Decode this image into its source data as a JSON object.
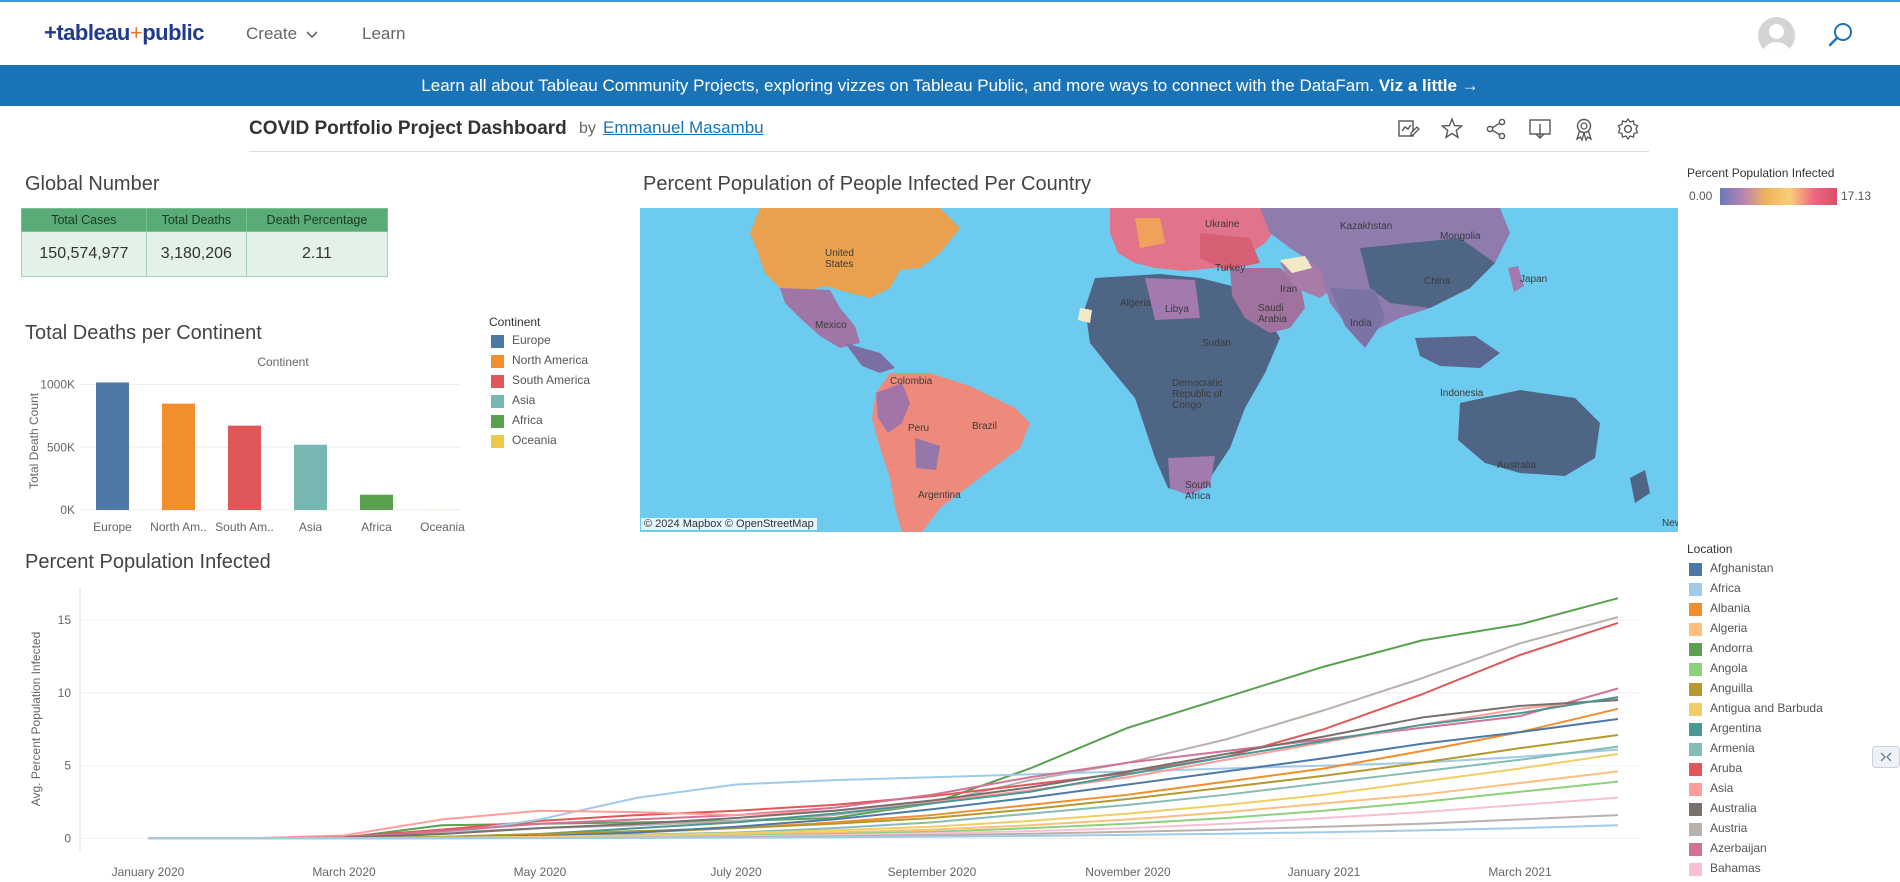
{
  "navbar": {
    "logo_main": "+tableau",
    "logo_plus": "+",
    "logo_public": "public",
    "create_label": "Create",
    "learn_label": "Learn"
  },
  "banner": {
    "text": "Learn all about Tableau Community Projects, exploring vizzes on Tableau Public, and more ways to connect with the DataFam.",
    "link": "Viz a little →"
  },
  "viz": {
    "title": "COVID Portfolio Project Dashboard",
    "by": "by",
    "author": "Emmanuel Masambu"
  },
  "global_number": {
    "title": "Global Number",
    "headers": [
      "Total Cases",
      "Total Deaths",
      "Death Percentage"
    ],
    "values": [
      "150,574,977",
      "3,180,206",
      "2.11"
    ]
  },
  "deaths_chart_section": {
    "title": "Total Deaths per Continent",
    "legend_title": "Continent"
  },
  "map_section": {
    "title": "Percent Population of People Infected Per Country",
    "legend_title": "Percent Population Infected",
    "legend_min": "0.00",
    "legend_max": "17.13",
    "credit": "© 2024 Mapbox © OpenStreetMap",
    "labels": [
      "United States",
      "Mexico",
      "Colombia",
      "Peru",
      "Brazil",
      "Argentina",
      "Algeria",
      "Libya",
      "Sudan",
      "Democratic Republic of Congo",
      "South Africa",
      "Saudi Arabia",
      "Iran",
      "India",
      "China",
      "Mongolia",
      "Kazakhstan",
      "Ukraine",
      "Turkey",
      "Japan",
      "Indonesia",
      "Australia",
      "New"
    ]
  },
  "line_section": {
    "title": "Percent Population Infected",
    "legend_title": "Location",
    "locations": [
      {
        "name": "Afghanistan",
        "color": "#4e79a7"
      },
      {
        "name": "Africa",
        "color": "#a0cbe8"
      },
      {
        "name": "Albania",
        "color": "#f28e2b"
      },
      {
        "name": "Algeria",
        "color": "#ffbe7d"
      },
      {
        "name": "Andorra",
        "color": "#59a14f"
      },
      {
        "name": "Angola",
        "color": "#8cd17d"
      },
      {
        "name": "Anguilla",
        "color": "#b6992d"
      },
      {
        "name": "Antigua and Barbuda",
        "color": "#f1ce63"
      },
      {
        "name": "Argentina",
        "color": "#499894"
      },
      {
        "name": "Armenia",
        "color": "#86bcb6"
      },
      {
        "name": "Aruba",
        "color": "#e15759"
      },
      {
        "name": "Asia",
        "color": "#ff9d9a"
      },
      {
        "name": "Australia",
        "color": "#79706e"
      },
      {
        "name": "Austria",
        "color": "#bab0ac"
      },
      {
        "name": "Azerbaijan",
        "color": "#d37295"
      },
      {
        "name": "Bahamas",
        "color": "#fabfd2"
      }
    ]
  },
  "chart_data": [
    {
      "type": "bar",
      "title": "Continent",
      "xlabel": "",
      "ylabel": "Total Death Count",
      "categories": [
        "Europe",
        "North Am..",
        "South Am..",
        "Asia",
        "Africa",
        "Oceania"
      ],
      "legend_labels": [
        "Europe",
        "North America",
        "South America",
        "Asia",
        "Africa",
        "Oceania"
      ],
      "values": [
        1016750,
        847942,
        672415,
        520269,
        121784,
        1046
      ],
      "colors": [
        "#4e79a7",
        "#f28e2b",
        "#e15759",
        "#76b7b2",
        "#59a14f",
        "#edc948"
      ],
      "ylim": [
        0,
        1100000
      ],
      "yticks": [
        0,
        500000,
        1000000
      ],
      "ytick_labels": [
        "0K",
        "500K",
        "1000K"
      ],
      "grid": true,
      "legend": "right"
    },
    {
      "type": "line",
      "title": "",
      "xlabel": "",
      "ylabel": "Avg. Percent Population Infected",
      "x": [
        "2020-01",
        "2020-02",
        "2020-03",
        "2020-04",
        "2020-05",
        "2020-06",
        "2020-07",
        "2020-08",
        "2020-09",
        "2020-10",
        "2020-11",
        "2020-12",
        "2021-01",
        "2021-02",
        "2021-03",
        "2021-04"
      ],
      "xtick_labels": [
        "January 2020",
        "March 2020",
        "May 2020",
        "July 2020",
        "September 2020",
        "November 2020",
        "January 2021",
        "March 2021"
      ],
      "xtick_positions": [
        "2020-01",
        "2020-03",
        "2020-05",
        "2020-07",
        "2020-09",
        "2020-11",
        "2021-01",
        "2021-03"
      ],
      "yticks": [
        0,
        5,
        10,
        15
      ],
      "ylim": [
        -0.8,
        17.2
      ],
      "grid": true,
      "legend": "right",
      "series": [
        {
          "name": "Andorra",
          "color": "#59a14f",
          "values": [
            0,
            0,
            0.05,
            0.9,
            1.0,
            1.1,
            1.2,
            1.4,
            2.4,
            4.8,
            7.6,
            9.7,
            11.8,
            13.6,
            14.7,
            16.5
          ]
        },
        {
          "name": "Australia",
          "color": "#bab0ac",
          "values": [
            0,
            0,
            0.05,
            0.4,
            0.7,
            0.9,
            1.2,
            1.6,
            2.4,
            4.0,
            5.2,
            6.8,
            8.8,
            11.0,
            13.4,
            15.2
          ]
        },
        {
          "name": "Aruba",
          "color": "#e15759",
          "values": [
            0,
            0,
            0.1,
            0.6,
            1.2,
            1.6,
            1.9,
            2.3,
            2.9,
            3.7,
            4.5,
            5.6,
            7.5,
            9.9,
            12.6,
            14.8
          ]
        },
        {
          "name": "Africa",
          "color": "#a0cbe8",
          "values": [
            0,
            0,
            0,
            0.3,
            1.3,
            2.8,
            3.7,
            4.0,
            4.2,
            4.4,
            4.6,
            4.8,
            5.0,
            5.2,
            5.6,
            6.1
          ]
        },
        {
          "name": "Azerbaijan",
          "color": "#d37295",
          "values": [
            0,
            0,
            0.05,
            0.5,
            1.0,
            1.3,
            1.6,
            2.1,
            3.0,
            4.2,
            5.2,
            6.0,
            6.8,
            7.6,
            8.4,
            10.3
          ]
        },
        {
          "name": "Asia",
          "color": "#ff9d9a",
          "values": [
            0,
            0,
            0.2,
            1.3,
            1.9,
            1.8,
            1.6,
            1.9,
            2.5,
            3.3,
            4.2,
            5.4,
            6.6,
            7.8,
            8.9,
            9.6
          ]
        },
        {
          "name": "Australia (line 2)",
          "color": "#79706e",
          "values": [
            0,
            0,
            0.05,
            0.3,
            0.7,
            1.0,
            1.4,
            1.9,
            2.6,
            3.5,
            4.6,
            5.8,
            7.0,
            8.3,
            9.1,
            9.5
          ]
        },
        {
          "name": "Argentina",
          "color": "#499894",
          "values": [
            0,
            0,
            0,
            0.1,
            0.3,
            0.7,
            1.1,
            1.7,
            2.4,
            3.2,
            4.4,
            5.6,
            6.7,
            7.8,
            8.6,
            9.7
          ]
        },
        {
          "name": "Albania",
          "color": "#f28e2b",
          "values": [
            0,
            0,
            0,
            0.05,
            0.2,
            0.4,
            0.7,
            1.1,
            1.6,
            2.3,
            3.0,
            3.9,
            4.8,
            6.0,
            7.3,
            8.9
          ]
        },
        {
          "name": "Anguilla",
          "color": "#b6992d",
          "values": [
            0,
            0,
            0,
            0.1,
            0.3,
            0.5,
            0.7,
            1.0,
            1.4,
            2.0,
            2.7,
            3.5,
            4.3,
            5.2,
            6.2,
            7.1
          ]
        },
        {
          "name": "Afghanistan",
          "color": "#4e79a7",
          "values": [
            0,
            0,
            0,
            0.05,
            0.15,
            0.4,
            0.8,
            1.3,
            2.0,
            2.8,
            3.7,
            4.6,
            5.5,
            6.5,
            7.3,
            8.2
          ]
        },
        {
          "name": "Armenia",
          "color": "#86bcb6",
          "values": [
            0,
            0,
            0,
            0.05,
            0.1,
            0.25,
            0.4,
            0.7,
            1.1,
            1.7,
            2.3,
            3.0,
            3.8,
            4.6,
            5.4,
            6.3
          ]
        },
        {
          "name": "Algeria",
          "color": "#ffbe7d",
          "values": [
            0,
            0,
            0,
            0.03,
            0.08,
            0.15,
            0.25,
            0.4,
            0.6,
            0.9,
            1.3,
            1.8,
            2.4,
            3.0,
            3.8,
            4.6
          ]
        },
        {
          "name": "Angola",
          "color": "#8cd17d",
          "values": [
            0,
            0,
            0,
            0.02,
            0.05,
            0.1,
            0.18,
            0.3,
            0.45,
            0.7,
            1.0,
            1.4,
            1.9,
            2.5,
            3.2,
            3.9
          ]
        },
        {
          "name": "Antigua and Barbuda",
          "color": "#f1ce63",
          "values": [
            0,
            0,
            0,
            0.05,
            0.1,
            0.2,
            0.35,
            0.55,
            0.8,
            1.2,
            1.7,
            2.3,
            3.0,
            3.9,
            4.8,
            5.8
          ]
        },
        {
          "name": "Bahamas",
          "color": "#fabfd2",
          "values": [
            0,
            0,
            0,
            0.02,
            0.04,
            0.08,
            0.14,
            0.22,
            0.35,
            0.5,
            0.7,
            1.0,
            1.4,
            1.8,
            2.3,
            2.8
          ]
        },
        {
          "name": "Austria",
          "color": "#bab0ac",
          "values": [
            0,
            0,
            0,
            0.01,
            0.02,
            0.05,
            0.09,
            0.14,
            0.22,
            0.32,
            0.45,
            0.6,
            0.8,
            1.0,
            1.3,
            1.6
          ]
        },
        {
          "name": "Africa (line 2)",
          "color": "#a0cbe8",
          "values": [
            0,
            0,
            0,
            0.01,
            0.02,
            0.03,
            0.05,
            0.08,
            0.12,
            0.17,
            0.24,
            0.32,
            0.42,
            0.55,
            0.7,
            0.9
          ]
        }
      ]
    }
  ]
}
